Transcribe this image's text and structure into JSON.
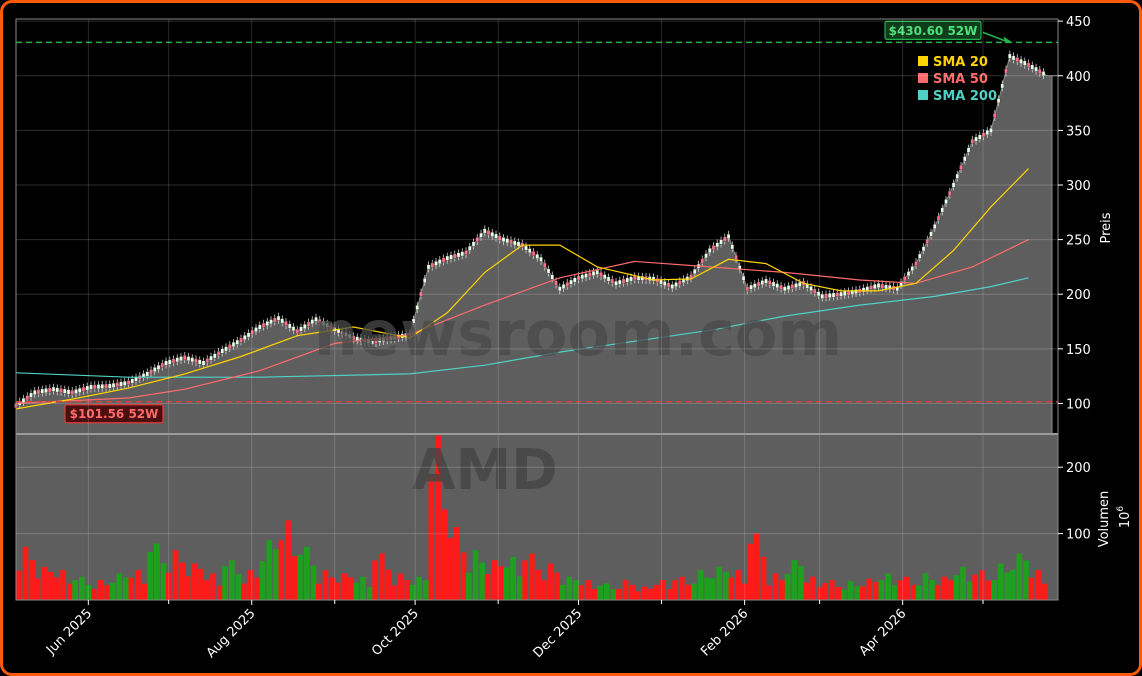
{
  "chart_data": {
    "type": "candlestick",
    "ticker": "AMD",
    "watermark_site": "newsroom.com",
    "price_axis": {
      "label": "Preis",
      "range": [
        72,
        452
      ],
      "ticks": [
        100,
        150,
        200,
        250,
        300,
        350,
        400,
        450
      ]
    },
    "volume_axis": {
      "label": "Volumen",
      "multiplier_base": "10",
      "multiplier_exp": "6",
      "range": [
        0,
        250
      ],
      "ticks": [
        100,
        200
      ]
    },
    "x_axis": {
      "start": "2025-05-05",
      "end": "2026-05-29",
      "ticks": [
        {
          "date": "2025-06-01",
          "label": "Jun 2025"
        },
        {
          "date": "2025-08-01",
          "label": "Aug 2025"
        },
        {
          "date": "2025-10-01",
          "label": "Oct 2025"
        },
        {
          "date": "2025-12-01",
          "label": "Dec 2025"
        },
        {
          "date": "2026-02-01",
          "label": "Feb 2026"
        },
        {
          "date": "2026-04-01",
          "label": "Apr 2026"
        }
      ],
      "minor_ticks": [
        "2025-07-01",
        "2025-09-01",
        "2025-11-01",
        "2026-01-01",
        "2026-03-01",
        "2026-05-01"
      ]
    },
    "grid": true,
    "legend": {
      "placement": "top-right",
      "entries": [
        {
          "label": "SMA 20",
          "color": "#ffd400"
        },
        {
          "label": "SMA 50",
          "color": "#ff6b6b"
        },
        {
          "label": "SMA 200",
          "color": "#4fd1c5"
        }
      ]
    },
    "annotations": {
      "high": {
        "value": 430.6,
        "label": "$430.60 52W",
        "date": "2026-05-12",
        "color": "#22b14c"
      },
      "low": {
        "value": 101.56,
        "label": "$101.56 52W",
        "color": "#e03c3c"
      }
    },
    "price_series": [
      [
        "2025-05-05",
        98
      ],
      [
        "2025-05-12",
        110
      ],
      [
        "2025-05-19",
        113
      ],
      [
        "2025-05-26",
        110
      ],
      [
        "2025-06-02",
        115
      ],
      [
        "2025-06-09",
        116
      ],
      [
        "2025-06-16",
        119
      ],
      [
        "2025-06-23",
        127
      ],
      [
        "2025-06-30",
        137
      ],
      [
        "2025-07-07",
        142
      ],
      [
        "2025-07-14",
        137
      ],
      [
        "2025-07-21",
        148
      ],
      [
        "2025-07-28",
        158
      ],
      [
        "2025-08-04",
        170
      ],
      [
        "2025-08-11",
        178
      ],
      [
        "2025-08-18",
        166
      ],
      [
        "2025-08-25",
        177
      ],
      [
        "2025-09-01",
        168
      ],
      [
        "2025-09-08",
        160
      ],
      [
        "2025-09-15",
        156
      ],
      [
        "2025-09-22",
        160
      ],
      [
        "2025-09-29",
        163
      ],
      [
        "2025-10-06",
        225
      ],
      [
        "2025-10-13",
        233
      ],
      [
        "2025-10-20",
        238
      ],
      [
        "2025-10-27",
        258
      ],
      [
        "2025-11-03",
        250
      ],
      [
        "2025-11-10",
        245
      ],
      [
        "2025-11-17",
        232
      ],
      [
        "2025-11-24",
        205
      ],
      [
        "2025-12-01",
        215
      ],
      [
        "2025-12-08",
        220
      ],
      [
        "2025-12-15",
        210
      ],
      [
        "2025-12-22",
        215
      ],
      [
        "2025-12-29",
        214
      ],
      [
        "2026-01-05",
        207
      ],
      [
        "2026-01-12",
        216
      ],
      [
        "2026-01-19",
        240
      ],
      [
        "2026-01-26",
        253
      ],
      [
        "2026-02-02",
        205
      ],
      [
        "2026-02-09",
        212
      ],
      [
        "2026-02-16",
        205
      ],
      [
        "2026-02-23",
        210
      ],
      [
        "2026-03-02",
        198
      ],
      [
        "2026-03-09",
        200
      ],
      [
        "2026-03-16",
        203
      ],
      [
        "2026-03-23",
        208
      ],
      [
        "2026-03-30",
        205
      ],
      [
        "2026-04-06",
        228
      ],
      [
        "2026-04-13",
        262
      ],
      [
        "2026-04-20",
        300
      ],
      [
        "2026-04-27",
        340
      ],
      [
        "2026-05-04",
        350
      ],
      [
        "2026-05-11",
        418
      ],
      [
        "2026-05-18",
        410
      ],
      [
        "2026-05-25",
        400
      ],
      [
        "2026-05-29",
        400
      ]
    ],
    "sma20": [
      [
        "2025-05-05",
        95
      ],
      [
        "2025-05-26",
        104
      ],
      [
        "2025-06-16",
        114
      ],
      [
        "2025-07-07",
        127
      ],
      [
        "2025-07-28",
        143
      ],
      [
        "2025-08-18",
        162
      ],
      [
        "2025-09-08",
        170
      ],
      [
        "2025-09-29",
        160
      ],
      [
        "2025-10-13",
        183
      ],
      [
        "2025-10-27",
        220
      ],
      [
        "2025-11-10",
        245
      ],
      [
        "2025-11-24",
        245
      ],
      [
        "2025-12-08",
        225
      ],
      [
        "2025-12-29",
        213
      ],
      [
        "2026-01-12",
        214
      ],
      [
        "2026-01-26",
        232
      ],
      [
        "2026-02-09",
        228
      ],
      [
        "2026-02-23",
        210
      ],
      [
        "2026-03-09",
        203
      ],
      [
        "2026-03-23",
        203
      ],
      [
        "2026-04-06",
        210
      ],
      [
        "2026-04-20",
        240
      ],
      [
        "2026-05-04",
        280
      ],
      [
        "2026-05-18",
        315
      ]
    ],
    "sma50": [
      [
        "2025-05-05",
        100
      ],
      [
        "2025-06-16",
        105
      ],
      [
        "2025-07-07",
        113
      ],
      [
        "2025-08-04",
        130
      ],
      [
        "2025-09-01",
        155
      ],
      [
        "2025-09-29",
        163
      ],
      [
        "2025-10-27",
        190
      ],
      [
        "2025-11-24",
        215
      ],
      [
        "2025-12-22",
        230
      ],
      [
        "2026-01-19",
        225
      ],
      [
        "2026-02-16",
        220
      ],
      [
        "2026-03-16",
        213
      ],
      [
        "2026-04-06",
        210
      ],
      [
        "2026-04-27",
        225
      ],
      [
        "2026-05-18",
        250
      ]
    ],
    "sma200": [
      [
        "2025-05-05",
        128
      ],
      [
        "2025-06-16",
        124
      ],
      [
        "2025-08-04",
        124
      ],
      [
        "2025-09-29",
        127
      ],
      [
        "2025-10-27",
        135
      ],
      [
        "2025-11-24",
        147
      ],
      [
        "2025-12-22",
        157
      ],
      [
        "2026-01-19",
        167
      ],
      [
        "2026-02-16",
        180
      ],
      [
        "2026-03-16",
        190
      ],
      [
        "2026-04-13",
        198
      ],
      [
        "2026-05-04",
        207
      ],
      [
        "2026-05-18",
        215
      ]
    ],
    "volume_series": [
      [
        "2025-05-05",
        80,
        "red"
      ],
      [
        "2025-05-12",
        50,
        "red"
      ],
      [
        "2025-05-19",
        45,
        "red"
      ],
      [
        "2025-05-26",
        35,
        "green"
      ],
      [
        "2025-06-02",
        30,
        "red"
      ],
      [
        "2025-06-09",
        40,
        "green"
      ],
      [
        "2025-06-16",
        45,
        "red"
      ],
      [
        "2025-06-23",
        85,
        "green"
      ],
      [
        "2025-06-30",
        75,
        "red"
      ],
      [
        "2025-07-07",
        55,
        "red"
      ],
      [
        "2025-07-14",
        40,
        "red"
      ],
      [
        "2025-07-21",
        60,
        "green"
      ],
      [
        "2025-07-28",
        45,
        "red"
      ],
      [
        "2025-08-04",
        90,
        "green"
      ],
      [
        "2025-08-11",
        120,
        "red"
      ],
      [
        "2025-08-18",
        80,
        "green"
      ],
      [
        "2025-08-25",
        45,
        "red"
      ],
      [
        "2025-09-01",
        40,
        "red"
      ],
      [
        "2025-09-08",
        35,
        "green"
      ],
      [
        "2025-09-15",
        70,
        "red"
      ],
      [
        "2025-09-22",
        40,
        "red"
      ],
      [
        "2025-09-29",
        35,
        "green"
      ],
      [
        "2025-10-06",
        248,
        "red"
      ],
      [
        "2025-10-13",
        110,
        "red"
      ],
      [
        "2025-10-20",
        75,
        "green"
      ],
      [
        "2025-10-27",
        60,
        "red"
      ],
      [
        "2025-11-03",
        65,
        "green"
      ],
      [
        "2025-11-10",
        70,
        "red"
      ],
      [
        "2025-11-17",
        55,
        "red"
      ],
      [
        "2025-11-24",
        35,
        "green"
      ],
      [
        "2025-12-01",
        30,
        "red"
      ],
      [
        "2025-12-08",
        25,
        "green"
      ],
      [
        "2025-12-15",
        30,
        "red"
      ],
      [
        "2025-12-22",
        20,
        "red"
      ],
      [
        "2025-12-29",
        30,
        "red"
      ],
      [
        "2026-01-05",
        35,
        "red"
      ],
      [
        "2026-01-12",
        45,
        "green"
      ],
      [
        "2026-01-19",
        50,
        "green"
      ],
      [
        "2026-01-26",
        45,
        "red"
      ],
      [
        "2026-02-02",
        100,
        "red"
      ],
      [
        "2026-02-09",
        40,
        "red"
      ],
      [
        "2026-02-16",
        60,
        "green"
      ],
      [
        "2026-02-23",
        35,
        "red"
      ],
      [
        "2026-03-02",
        30,
        "red"
      ],
      [
        "2026-03-09",
        28,
        "green"
      ],
      [
        "2026-03-16",
        32,
        "red"
      ],
      [
        "2026-03-23",
        40,
        "green"
      ],
      [
        "2026-03-30",
        35,
        "red"
      ],
      [
        "2026-04-06",
        40,
        "green"
      ],
      [
        "2026-04-13",
        35,
        "red"
      ],
      [
        "2026-04-20",
        50,
        "green"
      ],
      [
        "2026-04-27",
        45,
        "red"
      ],
      [
        "2026-05-04",
        55,
        "green"
      ],
      [
        "2026-05-11",
        70,
        "green"
      ],
      [
        "2026-05-18",
        45,
        "red"
      ]
    ]
  }
}
